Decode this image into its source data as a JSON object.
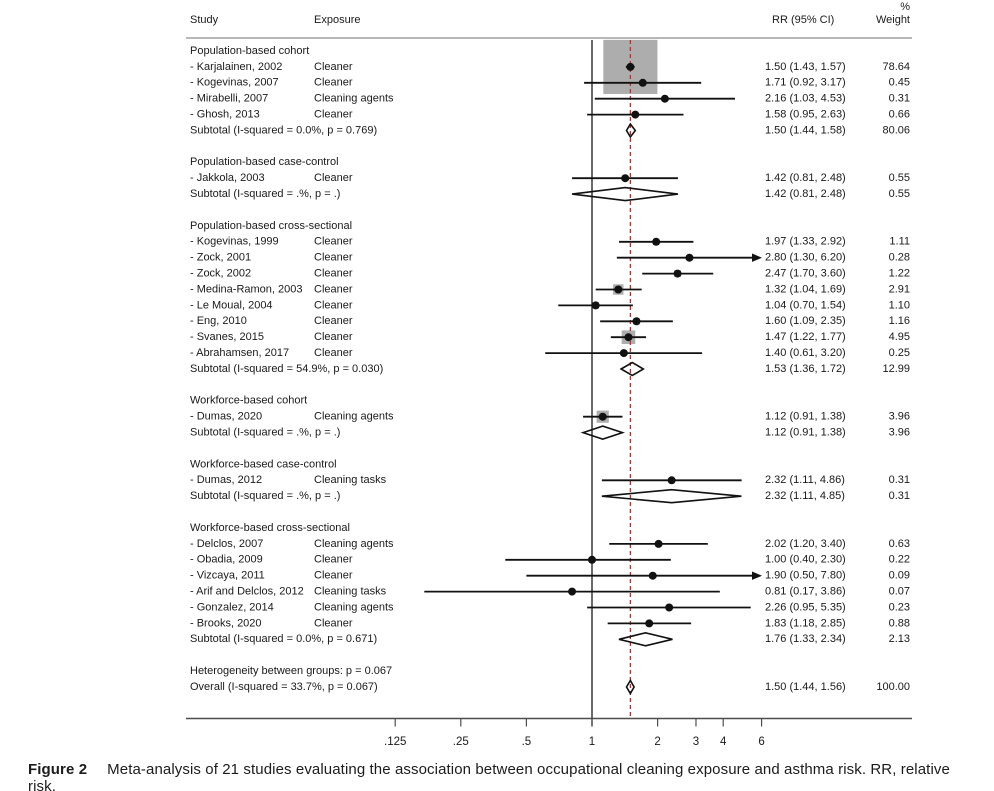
{
  "header": {
    "study": "Study",
    "exposure": "Exposure",
    "rr_ci": "RR (95% CI)",
    "pct": "%",
    "weight": "Weight"
  },
  "caption": {
    "label": "Figure 2",
    "text": "Meta-analysis of 21 studies evaluating the association between occupational cleaning exposure and asthma risk. RR, relative risk."
  },
  "chart_data": {
    "type": "forest",
    "x_axis": {
      "scale": "log",
      "ticks": [
        0.125,
        0.25,
        0.5,
        1,
        2,
        3,
        4,
        6
      ],
      "tick_labels": [
        ".125",
        ".25",
        ".5",
        "1",
        "2",
        "3",
        "4",
        "6"
      ],
      "null_line": 1,
      "overall_line": 1.5
    },
    "colors": {
      "overall_line": "#9a3c38",
      "weight_box": "#adadad",
      "marker": "#111111",
      "text": "#1a1a1a",
      "rule": "#4d4d4d",
      "header_rule": "#8c8c8c"
    },
    "groups": [
      {
        "label": "Population-based cohort",
        "studies": [
          {
            "study": "- Karjalainen, 2002",
            "exposure": "Cleaner",
            "rr": 1.5,
            "lo": 1.43,
            "hi": 1.57,
            "ci": "1.50 (1.43, 1.57)",
            "weight": 78.64
          },
          {
            "study": "- Kogevinas, 2007",
            "exposure": "Cleaner",
            "rr": 1.71,
            "lo": 0.92,
            "hi": 3.17,
            "ci": "1.71 (0.92, 3.17)",
            "weight": 0.45
          },
          {
            "study": "- Mirabelli, 2007",
            "exposure": "Cleaning agents",
            "rr": 2.16,
            "lo": 1.03,
            "hi": 4.53,
            "ci": "2.16 (1.03, 4.53)",
            "weight": 0.31
          },
          {
            "study": "- Ghosh, 2013",
            "exposure": "Cleaner",
            "rr": 1.58,
            "lo": 0.95,
            "hi": 2.63,
            "ci": "1.58 (0.95, 2.63)",
            "weight": 0.66
          }
        ],
        "subtotal": {
          "label": "Subtotal  (I-squared = 0.0%, p = 0.769)",
          "rr": 1.5,
          "lo": 1.44,
          "hi": 1.58,
          "ci": "1.50 (1.44, 1.58)",
          "weight": 80.06
        }
      },
      {
        "label": "Population-based case-control",
        "studies": [
          {
            "study": "- Jakkola, 2003",
            "exposure": "Cleaner",
            "rr": 1.42,
            "lo": 0.81,
            "hi": 2.48,
            "ci": "1.42 (0.81, 2.48)",
            "weight": 0.55
          }
        ],
        "subtotal": {
          "label": "Subtotal  (I-squared = .%, p = .)",
          "rr": 1.42,
          "lo": 0.81,
          "hi": 2.48,
          "ci": "1.42 (0.81, 2.48)",
          "weight": 0.55
        }
      },
      {
        "label": "Population-based cross-sectional",
        "studies": [
          {
            "study": "- Kogevinas, 1999",
            "exposure": "Cleaner",
            "rr": 1.97,
            "lo": 1.33,
            "hi": 2.92,
            "ci": "1.97 (1.33, 2.92)",
            "weight": 1.11
          },
          {
            "study": "- Zock, 2001",
            "exposure": "Cleaner",
            "rr": 2.8,
            "lo": 1.3,
            "hi": 6.2,
            "ci": "2.80 (1.30, 6.20)",
            "weight": 0.28
          },
          {
            "study": "- Zock, 2002",
            "exposure": "Cleaner",
            "rr": 2.47,
            "lo": 1.7,
            "hi": 3.6,
            "ci": "2.47 (1.70, 3.60)",
            "weight": 1.22
          },
          {
            "study": "- Medina-Ramon, 2003",
            "exposure": "Cleaner",
            "rr": 1.32,
            "lo": 1.04,
            "hi": 1.69,
            "ci": "1.32 (1.04, 1.69)",
            "weight": 2.91
          },
          {
            "study": "- Le Moual, 2004",
            "exposure": "Cleaner",
            "rr": 1.04,
            "lo": 0.7,
            "hi": 1.54,
            "ci": "1.04 (0.70, 1.54)",
            "weight": 1.1
          },
          {
            "study": "- Eng, 2010",
            "exposure": "Cleaner",
            "rr": 1.6,
            "lo": 1.09,
            "hi": 2.35,
            "ci": "1.60 (1.09, 2.35)",
            "weight": 1.16
          },
          {
            "study": "- Svanes, 2015",
            "exposure": "Cleaner",
            "rr": 1.47,
            "lo": 1.22,
            "hi": 1.77,
            "ci": "1.47 (1.22, 1.77)",
            "weight": 4.95
          },
          {
            "study": "- Abrahamsen, 2017",
            "exposure": "Cleaner",
            "rr": 1.4,
            "lo": 0.61,
            "hi": 3.2,
            "ci": "1.40 (0.61, 3.20)",
            "weight": 0.25
          }
        ],
        "subtotal": {
          "label": "Subtotal  (I-squared = 54.9%, p = 0.030)",
          "rr": 1.53,
          "lo": 1.36,
          "hi": 1.72,
          "ci": "1.53 (1.36, 1.72)",
          "weight": 12.99
        }
      },
      {
        "label": "Workforce-based cohort",
        "studies": [
          {
            "study": "- Dumas, 2020",
            "exposure": "Cleaning agents",
            "rr": 1.12,
            "lo": 0.91,
            "hi": 1.38,
            "ci": "1.12 (0.91, 1.38)",
            "weight": 3.96
          }
        ],
        "subtotal": {
          "label": "Subtotal  (I-squared = .%, p = .)",
          "rr": 1.12,
          "lo": 0.91,
          "hi": 1.38,
          "ci": "1.12 (0.91, 1.38)",
          "weight": 3.96
        }
      },
      {
        "label": "Workforce-based case-control",
        "studies": [
          {
            "study": "- Dumas, 2012",
            "exposure": "Cleaning tasks",
            "rr": 2.32,
            "lo": 1.11,
            "hi": 4.86,
            "ci": "2.32 (1.11, 4.86)",
            "weight": 0.31
          }
        ],
        "subtotal": {
          "label": "Subtotal  (I-squared = .%, p = .)",
          "rr": 2.32,
          "lo": 1.11,
          "hi": 4.85,
          "ci": "2.32 (1.11, 4.85)",
          "weight": 0.31
        }
      },
      {
        "label": "Workforce-based cross-sectional",
        "studies": [
          {
            "study": "- Delclos, 2007",
            "exposure": "Cleaning agents",
            "rr": 2.02,
            "lo": 1.2,
            "hi": 3.4,
            "ci": "2.02 (1.20, 3.40)",
            "weight": 0.63
          },
          {
            "study": "- Obadia, 2009",
            "exposure": "Cleaner",
            "rr": 1.0,
            "lo": 0.4,
            "hi": 2.3,
            "ci": "1.00 (0.40, 2.30)",
            "weight": 0.22
          },
          {
            "study": "- Vizcaya, 2011",
            "exposure": "Cleaner",
            "rr": 1.9,
            "lo": 0.5,
            "hi": 7.8,
            "ci": "1.90 (0.50, 7.80)",
            "weight": 0.09
          },
          {
            "study": "- Arif and Delclos, 2012",
            "exposure": "Cleaning tasks",
            "rr": 0.81,
            "lo": 0.17,
            "hi": 3.86,
            "ci": "0.81 (0.17, 3.86)",
            "weight": 0.07
          },
          {
            "study": "- Gonzalez, 2014",
            "exposure": "Cleaning agents",
            "rr": 2.26,
            "lo": 0.95,
            "hi": 5.35,
            "ci": "2.26 (0.95, 5.35)",
            "weight": 0.23
          },
          {
            "study": "- Brooks, 2020",
            "exposure": "Cleaner",
            "rr": 1.83,
            "lo": 1.18,
            "hi": 2.85,
            "ci": "1.83 (1.18, 2.85)",
            "weight": 0.88
          }
        ],
        "subtotal": {
          "label": "Subtotal  (I-squared = 0.0%, p = 0.671)",
          "rr": 1.76,
          "lo": 1.33,
          "hi": 2.34,
          "ci": "1.76 (1.33, 2.34)",
          "weight": 2.13
        }
      }
    ],
    "heterogeneity_note": "Heterogeneity between groups: p = 0.067",
    "overall": {
      "label": "Overall  (I-squared = 33.7%, p = 0.067)",
      "rr": 1.5,
      "lo": 1.44,
      "hi": 1.56,
      "ci": "1.50 (1.44, 1.56)",
      "weight": 100.0
    }
  }
}
